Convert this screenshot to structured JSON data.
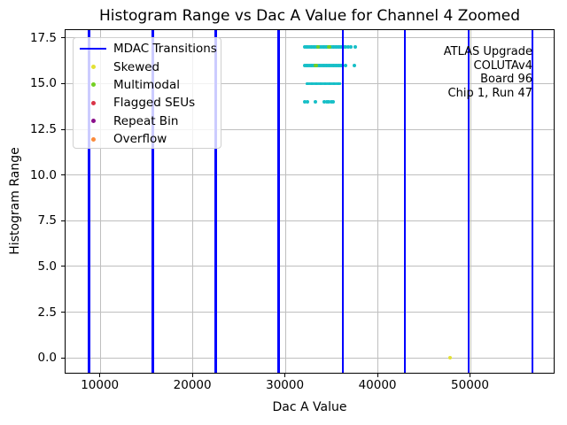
{
  "figure": {
    "background": "#ffffff"
  },
  "chart_data": {
    "type": "scatter",
    "title": "Histogram Range vs Dac A Value for Channel 4 Zoomed",
    "xlabel": "Dac A Value",
    "ylabel": "Histogram Range",
    "xlim": [
      6230,
      59140
    ],
    "ylim": [
      -0.85,
      17.93
    ],
    "grid": true,
    "legend_position": "upper left",
    "xticks": {
      "values": [
        10000,
        20000,
        30000,
        40000,
        50000
      ],
      "labels": [
        "10000",
        "20000",
        "30000",
        "40000",
        "50000"
      ]
    },
    "yticks": {
      "values": [
        0,
        2.5,
        5,
        7.5,
        10,
        12.5,
        15,
        17.5
      ],
      "labels": [
        "0.0",
        "2.5",
        "5.0",
        "7.5",
        "10.0",
        "12.5",
        "15.0",
        "17.5"
      ]
    },
    "colors": {
      "mdac_line": "#0000ff",
      "normal_point": "#17bfc7",
      "grid": "#bfbfbf",
      "spine": "#000000",
      "text": "#000000"
    },
    "mdac_transition_x": [
      8780,
      15650,
      22450,
      29270,
      36170,
      42910,
      49810,
      56700
    ],
    "series": {
      "normal": {
        "name": "Histogram Range points",
        "color": "#17bfc7",
        "rows": [
          {
            "y": 17,
            "x_start": 32100,
            "x_end": 36450,
            "x_step": 150,
            "extra_x": [
              36750,
              37100,
              37500
            ],
            "size": 4
          },
          {
            "y": 16,
            "x_start": 32100,
            "x_end": 36000,
            "x_step": 150,
            "extra_x": [
              36500,
              37450
            ],
            "size": 4
          },
          {
            "y": 15,
            "x_start": 32300,
            "x_end": 35900,
            "x_step": 120,
            "extra_x": [],
            "size": 2.6
          },
          {
            "y": 14,
            "x_list": [
              32100,
              32400,
              33250,
              34200,
              34450,
              34700,
              34950,
              35100
            ],
            "size": 4
          }
        ]
      },
      "special": [
        {
          "name": "Skewed",
          "color": "#e3e135",
          "size": 4.5,
          "points": [
            [
              47800,
              0
            ]
          ]
        },
        {
          "name": "Multimodal",
          "color": "#74cf24",
          "size": 4.5,
          "points": [
            [
              33500,
              17
            ],
            [
              34700,
              17
            ],
            [
              33280,
              16
            ]
          ]
        },
        {
          "name": "Flagged SEUs",
          "color": "#d93448",
          "size": 4.5,
          "points": []
        },
        {
          "name": "Repeat Bin",
          "color": "#8b0f8b",
          "size": 4.5,
          "points": []
        },
        {
          "name": "Overflow",
          "color": "#fb8b3c",
          "size": 4.5,
          "points": []
        }
      ]
    }
  },
  "legend": {
    "items": [
      {
        "key": "mdac-transitions",
        "label": "MDAC Transitions",
        "type": "line",
        "color": "#0000ff"
      },
      {
        "key": "skewed",
        "label": "Skewed",
        "type": "dot",
        "color": "#e3e135"
      },
      {
        "key": "multimodal",
        "label": "Multimodal",
        "type": "dot",
        "color": "#74cf24"
      },
      {
        "key": "flagged-seus",
        "label": "Flagged SEUs",
        "type": "dot",
        "color": "#d93448"
      },
      {
        "key": "repeat-bin",
        "label": "Repeat Bin",
        "type": "dot",
        "color": "#8b0f8b"
      },
      {
        "key": "overflow",
        "label": "Overflow",
        "type": "dot",
        "color": "#fb8b3c"
      }
    ]
  },
  "annotation": {
    "lines": [
      "ATLAS Upgrade",
      "COLUTAv4",
      "Board 96",
      "Chip 1, Run 47"
    ]
  }
}
